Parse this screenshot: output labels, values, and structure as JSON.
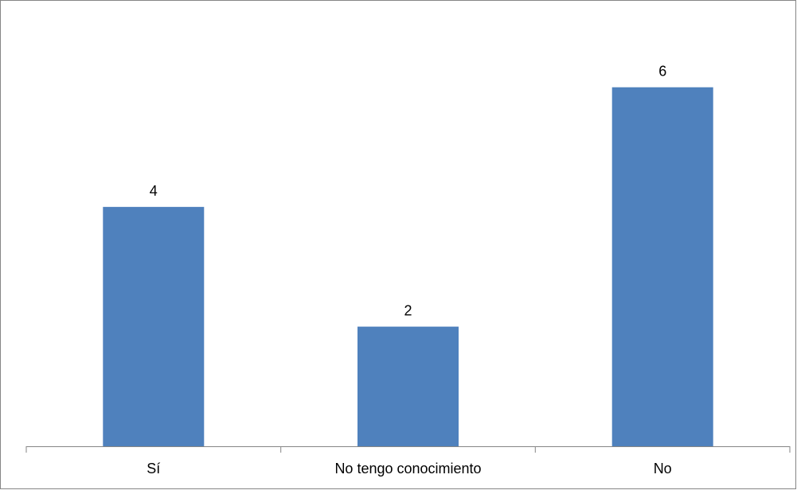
{
  "chart_data": {
    "type": "bar",
    "categories": [
      "Sí",
      "No tengo conocimiento",
      "No"
    ],
    "values": [
      4,
      2,
      6
    ],
    "data_labels": [
      "4",
      "2",
      "6"
    ],
    "title": "",
    "xlabel": "",
    "ylabel": "",
    "ylim": [
      0,
      6.9
    ],
    "grid": false,
    "legend": "none",
    "colors": {
      "bar": "#4f81bd",
      "axis": "#868686",
      "border": "#868686",
      "text": "#000000"
    }
  }
}
